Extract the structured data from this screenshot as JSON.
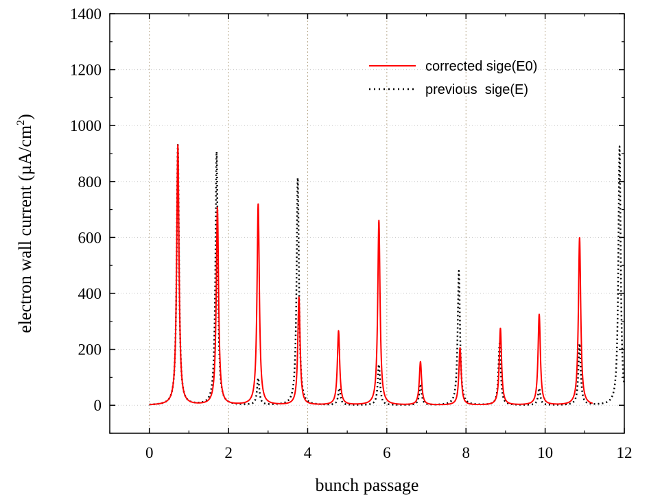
{
  "chart_data": {
    "type": "line",
    "title": "",
    "xlabel": "bunch passage",
    "ylabel_main": "electron wall current  (µA/cm",
    "ylabel_sup": "2",
    "ylabel_close": ")",
    "xlim": [
      -1,
      12
    ],
    "ylim": [
      -100,
      1400
    ],
    "xticks": [
      0,
      2,
      4,
      6,
      8,
      10,
      12
    ],
    "yticks": [
      0,
      200,
      400,
      600,
      800,
      1000,
      1200,
      1400
    ],
    "grid": {
      "vertical": true,
      "horizontal": true
    },
    "legend_position": "top-right",
    "series": [
      {
        "name": "corrected sige(E0)",
        "style": "solid",
        "color": "#ff0000",
        "baseline_range": [
          0,
          11.2
        ],
        "peaks": [
          {
            "x": 0.72,
            "y": 930
          },
          {
            "x": 1.72,
            "y": 705
          },
          {
            "x": 2.75,
            "y": 720
          },
          {
            "x": 3.78,
            "y": 385
          },
          {
            "x": 4.78,
            "y": 265
          },
          {
            "x": 5.8,
            "y": 660
          },
          {
            "x": 6.85,
            "y": 155
          },
          {
            "x": 7.85,
            "y": 205
          },
          {
            "x": 8.87,
            "y": 275
          },
          {
            "x": 9.85,
            "y": 325
          },
          {
            "x": 10.87,
            "y": 600
          }
        ]
      },
      {
        "name": "previous  sige(E)",
        "style": "dotted",
        "color": "#000000",
        "baseline_range": [
          0,
          12
        ],
        "peaks": [
          {
            "x": 0.72,
            "y": 930
          },
          {
            "x": 1.7,
            "y": 905
          },
          {
            "x": 2.75,
            "y": 95
          },
          {
            "x": 3.75,
            "y": 815
          },
          {
            "x": 4.8,
            "y": 60
          },
          {
            "x": 5.8,
            "y": 145
          },
          {
            "x": 6.85,
            "y": 75
          },
          {
            "x": 7.82,
            "y": 480
          },
          {
            "x": 8.85,
            "y": 220
          },
          {
            "x": 9.85,
            "y": 60
          },
          {
            "x": 10.87,
            "y": 220
          },
          {
            "x": 11.88,
            "y": 925
          }
        ]
      }
    ]
  }
}
